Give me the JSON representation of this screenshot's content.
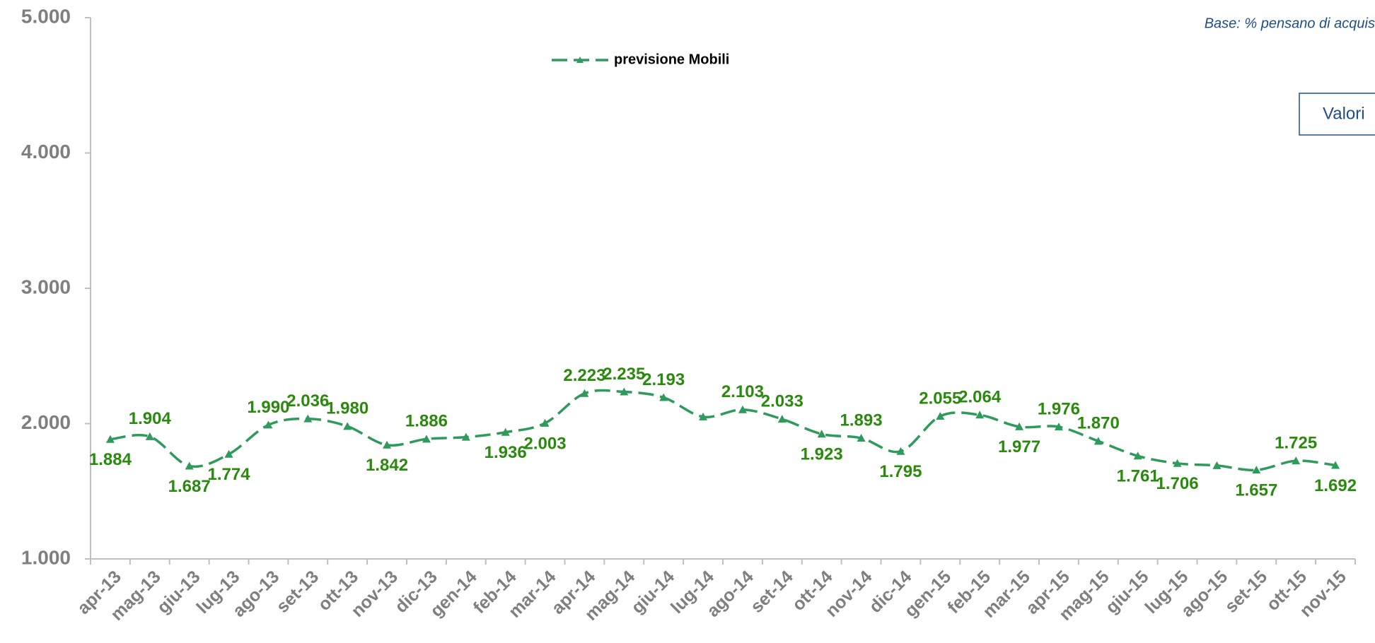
{
  "chart_data": {
    "type": "line",
    "subtitle": "Base: % pensano di acquis",
    "annotation": "Valori",
    "categories": [
      "apr-13",
      "mag-13",
      "giu-13",
      "lug-13",
      "ago-13",
      "set-13",
      "ott-13",
      "nov-13",
      "dic-13",
      "gen-14",
      "feb-14",
      "mar-14",
      "apr-14",
      "mag-14",
      "giu-14",
      "lug-14",
      "ago-14",
      "set-14",
      "ott-14",
      "nov-14",
      "dic-14",
      "gen-15",
      "feb-15",
      "mar-15",
      "apr-15",
      "mag-15",
      "giu-15",
      "lug-15",
      "ago-15",
      "set-15",
      "ott-15",
      "nov-15"
    ],
    "series": [
      {
        "name": "previsione Mobili",
        "color": "#2e9a5c",
        "values": [
          1884,
          1904,
          1687,
          1774,
          1990,
          2036,
          1980,
          1842,
          1886,
          1900,
          1936,
          2003,
          2223,
          2235,
          2193,
          2050,
          2103,
          2033,
          1923,
          1893,
          1795,
          2055,
          2064,
          1977,
          1976,
          1870,
          1761,
          1706,
          1690,
          1657,
          1725,
          1692
        ],
        "value_labels": [
          "1.884",
          "1.904",
          "1.687",
          "1.774",
          "1.990",
          "2.036",
          "1.980",
          "1.842",
          "1.886",
          null,
          "1.936",
          "2.003",
          "2.223",
          "2.235",
          "2.193",
          null,
          "2.103",
          "2.033",
          "1.923",
          "1.893",
          "1.795",
          "2.055",
          "2.064",
          "1.977",
          "1.976",
          "1.870",
          "1.761",
          "1.706",
          null,
          "1.657",
          "1.725",
          "1.692"
        ]
      }
    ],
    "ylim": [
      1000,
      5000
    ],
    "yticks": [
      {
        "value": 1000,
        "label": "1.000"
      },
      {
        "value": 2000,
        "label": "2.000"
      },
      {
        "value": 3000,
        "label": "3.000"
      },
      {
        "value": 4000,
        "label": "4.000"
      },
      {
        "value": 5000,
        "label": "5.000"
      }
    ],
    "label_color": "#2a8a0e"
  }
}
